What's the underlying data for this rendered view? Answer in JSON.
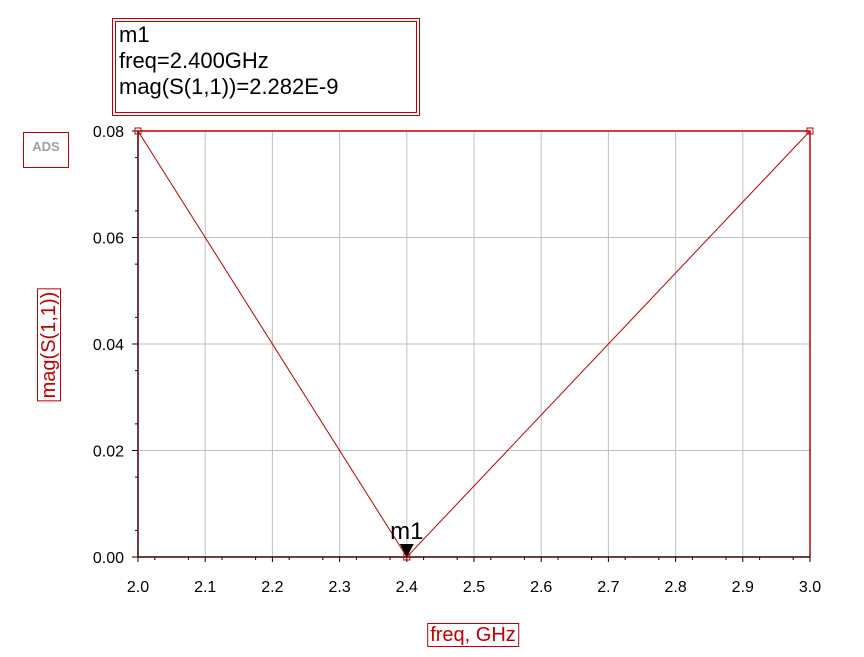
{
  "marker_readout": {
    "name": "m1",
    "freq_line": "freq=2.400GHz",
    "value_line": "mag(S(1,1))=2.282E-9"
  },
  "logo_text": "ADS",
  "chart_data": {
    "type": "line",
    "xlabel": "freq, GHz",
    "ylabel": "mag(S(1,1))",
    "xlim": [
      2.0,
      3.0
    ],
    "ylim": [
      0.0,
      0.08
    ],
    "x_ticks": [
      "2.0",
      "2.1",
      "2.2",
      "2.3",
      "2.4",
      "2.5",
      "2.6",
      "2.7",
      "2.8",
      "2.9",
      "3.0"
    ],
    "y_ticks": [
      "0.00",
      "0.02",
      "0.04",
      "0.06",
      "0.08"
    ],
    "grid": true,
    "series": [
      {
        "x": [
          2.0,
          2.4,
          3.0
        ],
        "y": [
          0.08,
          0.0,
          0.08
        ]
      }
    ],
    "markers": [
      {
        "label": "m1",
        "x": 2.4,
        "y": 0.0
      }
    ],
    "colors": {
      "trace": "#c00000",
      "grid": "#c0c0c0",
      "frame": "#c00000"
    }
  }
}
